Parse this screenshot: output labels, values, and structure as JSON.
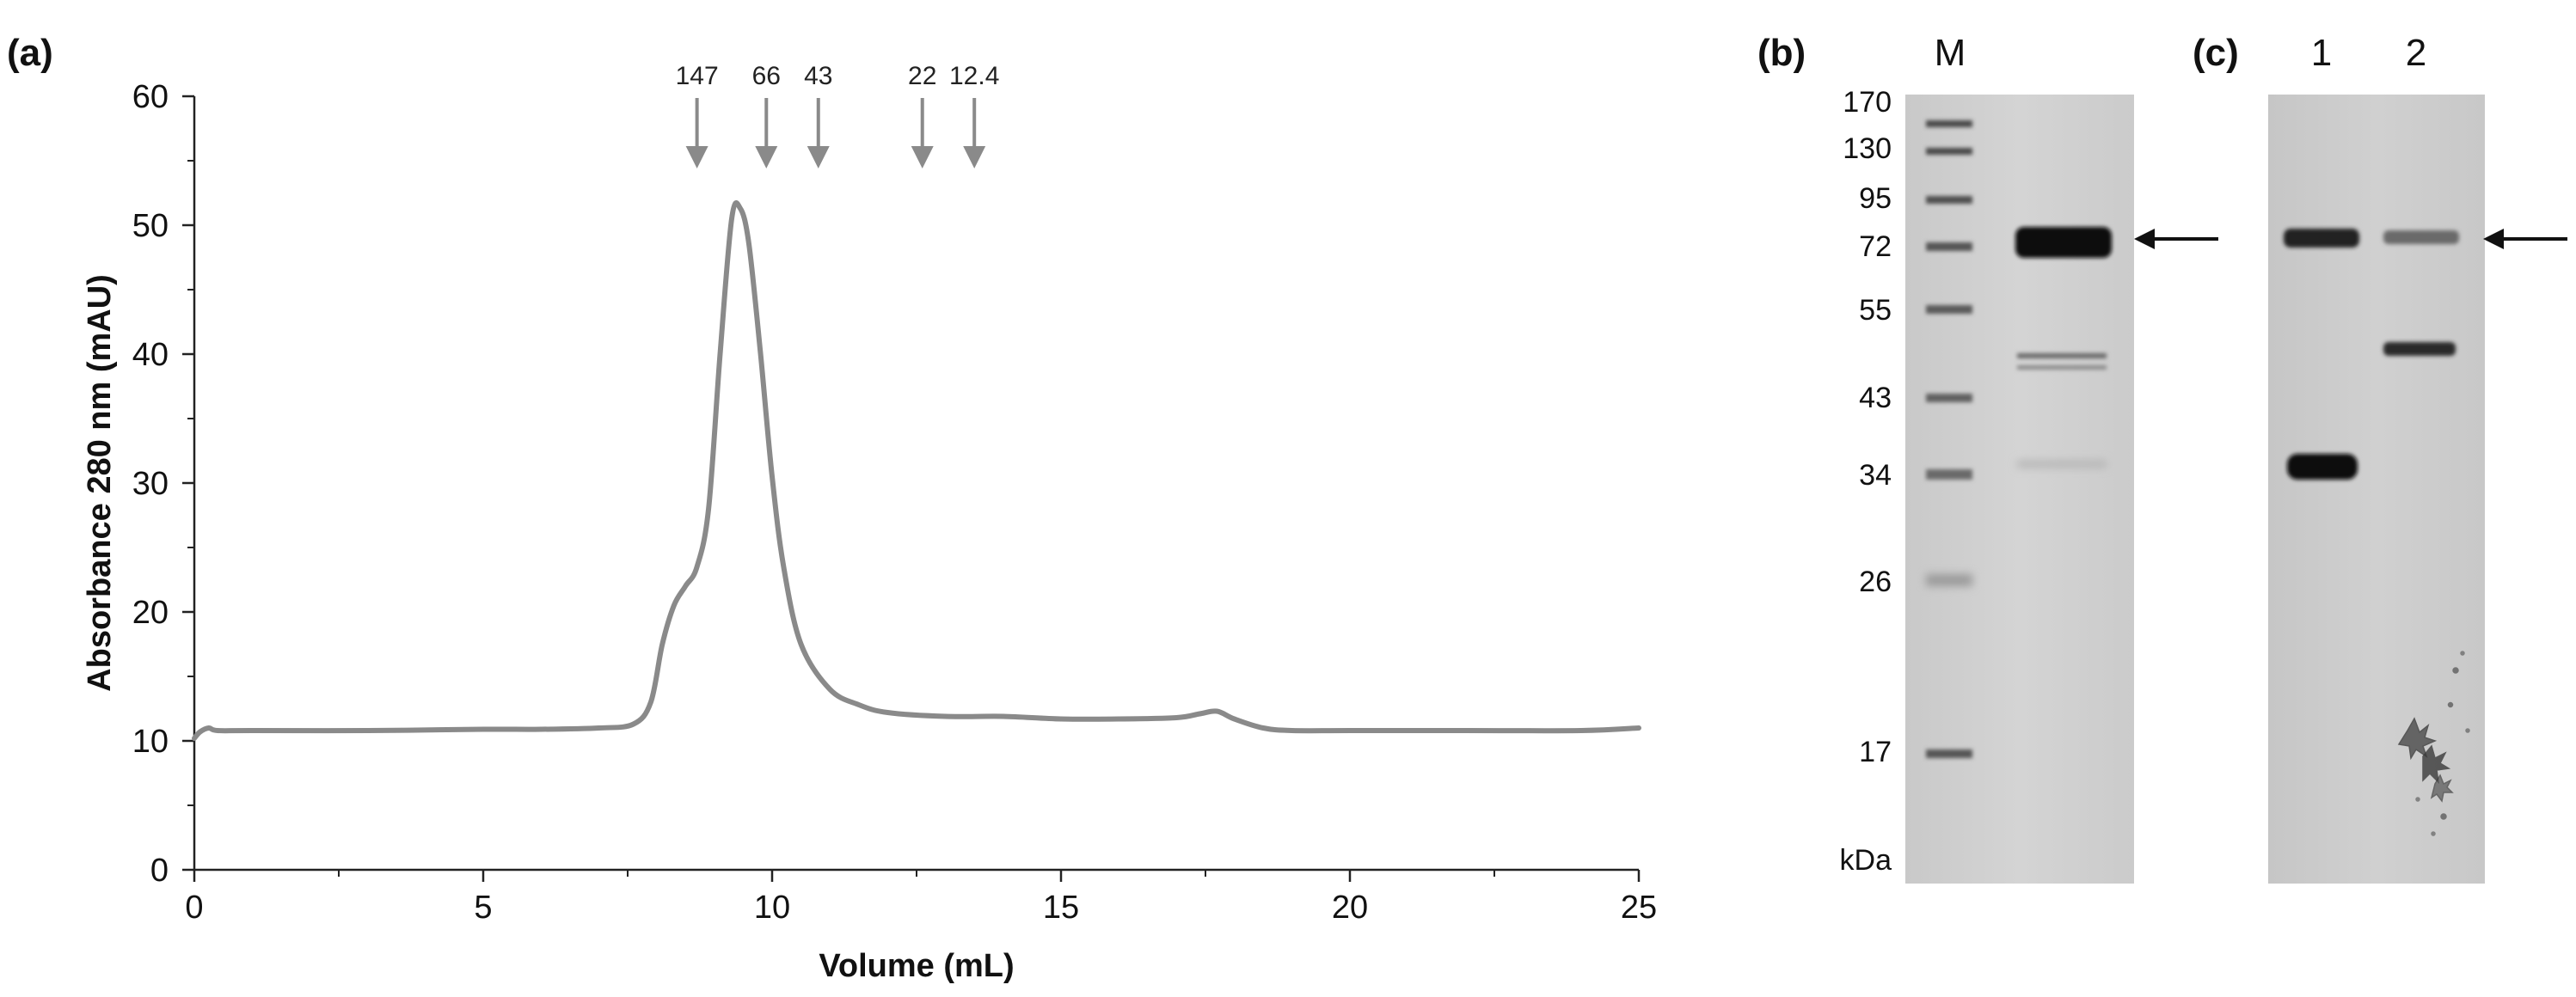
{
  "panels": {
    "a": "(a)",
    "b": "(b)",
    "c": "(c)"
  },
  "chart_data": {
    "type": "line",
    "xlabel": "Volume (mL)",
    "ylabel": "Absorbance 280 nm (mAU)",
    "xlim": [
      0,
      25
    ],
    "ylim": [
      0,
      60
    ],
    "xticks": [
      0,
      5,
      10,
      15,
      20,
      25
    ],
    "yticks": [
      0,
      10,
      20,
      30,
      40,
      50,
      60
    ],
    "grid": false,
    "line_color": "#8a8a8a",
    "series": [
      {
        "x": [
          0,
          0.1,
          0.25,
          0.4,
          1,
          3,
          5,
          6,
          7,
          7.6,
          7.9,
          8.1,
          8.3,
          8.5,
          8.7,
          8.9,
          9.1,
          9.3,
          9.45,
          9.6,
          9.8,
          10.0,
          10.2,
          10.5,
          11,
          11.5,
          12,
          13,
          14,
          15,
          16,
          17,
          17.4,
          17.7,
          18,
          18.5,
          19,
          20,
          22,
          24,
          25
        ],
        "y": [
          10.2,
          10.7,
          11.0,
          10.8,
          10.8,
          10.8,
          10.9,
          10.9,
          11.0,
          11.3,
          13.0,
          17.5,
          20.5,
          22.0,
          23.5,
          28.0,
          40.0,
          50.5,
          51.3,
          48.5,
          40.0,
          30.5,
          23.5,
          17.5,
          14.0,
          12.8,
          12.2,
          11.9,
          11.9,
          11.7,
          11.7,
          11.8,
          12.1,
          12.3,
          11.7,
          11.0,
          10.8,
          10.8,
          10.8,
          10.8,
          11.0
        ]
      }
    ],
    "annotations": [
      {
        "label": "147",
        "x": 8.7
      },
      {
        "label": "66",
        "x": 9.9
      },
      {
        "label": "43",
        "x": 10.8
      },
      {
        "label": "22",
        "x": 12.6
      },
      {
        "label": "12.4",
        "x": 13.5
      }
    ]
  },
  "gel_b": {
    "lane_labels": [
      "M"
    ],
    "mw_markers": [
      "170",
      "130",
      "95",
      "72",
      "55",
      "43",
      "34",
      "26",
      "17"
    ],
    "unit": "kDa"
  },
  "gel_c": {
    "lane_labels": [
      "1",
      "2"
    ]
  }
}
